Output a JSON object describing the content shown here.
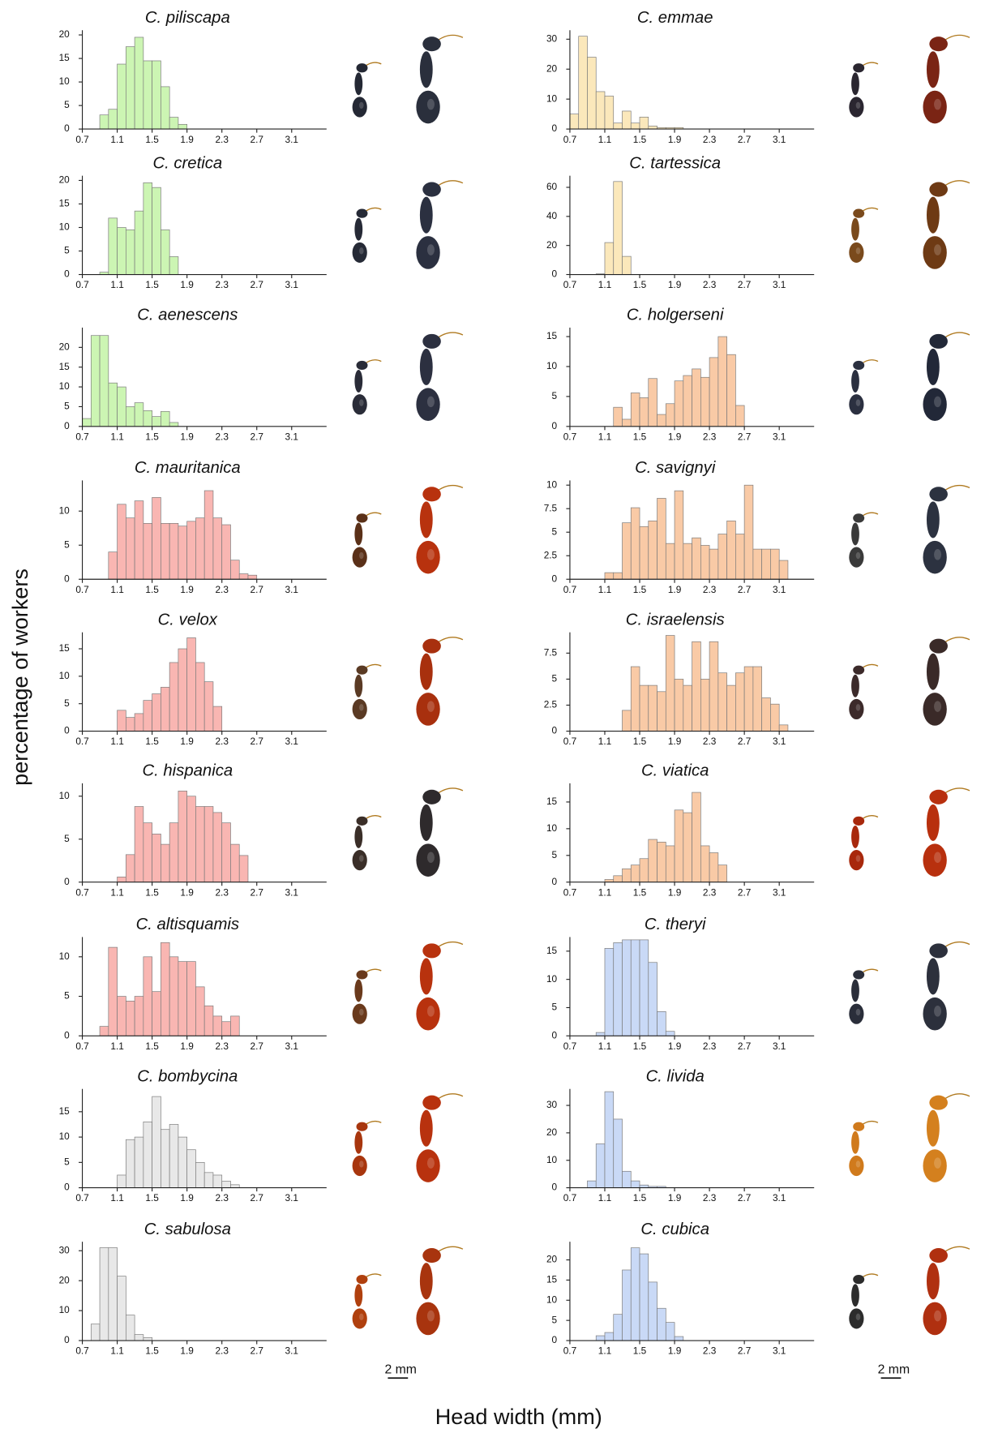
{
  "chart_data": [
    {
      "type": "histogram",
      "title": "C. piliscapa",
      "color": "#ccf5b3",
      "xlim": [
        0.7,
        3.5
      ],
      "xticks": [
        0.7,
        1.1,
        1.5,
        1.9,
        2.3,
        2.7,
        3.1
      ],
      "ylim": [
        0,
        21
      ],
      "yticks": [
        0,
        5,
        10,
        15,
        20
      ],
      "bins": [
        0.9,
        1.0,
        1.1,
        1.2,
        1.3,
        1.4,
        1.5,
        1.6,
        1.7,
        1.8,
        1.9
      ],
      "counts": [
        3,
        4.2,
        13.8,
        17.5,
        19.5,
        14.5,
        14.5,
        9,
        2.5,
        1
      ]
    },
    {
      "type": "histogram",
      "title": "C. emmae",
      "color": "#fbe8bb",
      "xlim": [
        0.7,
        3.5
      ],
      "xticks": [
        0.7,
        1.1,
        1.5,
        1.9,
        2.3,
        2.7,
        3.1
      ],
      "ylim": [
        0,
        33
      ],
      "yticks": [
        0,
        10,
        20,
        30
      ],
      "bins": [
        0.7,
        0.8,
        0.9,
        1.0,
        1.1,
        1.2,
        1.3,
        1.4,
        1.5,
        1.6,
        1.7,
        1.8,
        1.9,
        2.0
      ],
      "counts": [
        5,
        31,
        24,
        12.5,
        11,
        2,
        6,
        2,
        4,
        1,
        0.5,
        0.5,
        0.5
      ]
    },
    {
      "type": "histogram",
      "title": "C. cretica",
      "color": "#ccf5b3",
      "xlim": [
        0.7,
        3.5
      ],
      "xticks": [
        0.7,
        1.1,
        1.5,
        1.9,
        2.3,
        2.7,
        3.1
      ],
      "ylim": [
        0,
        21
      ],
      "yticks": [
        0,
        5,
        10,
        15,
        20
      ],
      "bins": [
        0.9,
        1.0,
        1.1,
        1.2,
        1.3,
        1.4,
        1.5,
        1.6,
        1.7,
        1.8
      ],
      "counts": [
        0.5,
        12,
        10,
        9.5,
        13.5,
        19.5,
        18.5,
        9.5,
        3.8
      ]
    },
    {
      "type": "histogram",
      "title": "C. tartessica",
      "color": "#fbe8bb",
      "xlim": [
        0.7,
        3.5
      ],
      "xticks": [
        0.7,
        1.1,
        1.5,
        1.9,
        2.3,
        2.7,
        3.1
      ],
      "ylim": [
        0,
        68
      ],
      "yticks": [
        0,
        20,
        40,
        60
      ],
      "bins": [
        1.0,
        1.1,
        1.2,
        1.3,
        1.4
      ],
      "counts": [
        0.5,
        22,
        64,
        12.5
      ]
    },
    {
      "type": "histogram",
      "title": "C. aenescens",
      "color": "#ccf5b3",
      "xlim": [
        0.7,
        3.5
      ],
      "xticks": [
        0.7,
        1.1,
        1.5,
        1.9,
        2.3,
        2.7,
        3.1
      ],
      "ylim": [
        0,
        25
      ],
      "yticks": [
        0,
        5,
        10,
        15,
        20
      ],
      "bins": [
        0.7,
        0.8,
        0.9,
        1.0,
        1.1,
        1.2,
        1.3,
        1.4,
        1.5,
        1.6,
        1.7,
        1.8
      ],
      "counts": [
        2,
        23,
        23,
        11,
        10,
        5,
        6,
        4,
        2.5,
        3.8,
        1
      ]
    },
    {
      "type": "histogram",
      "title": "C. holgerseni",
      "color": "#f9caa6",
      "xlim": [
        0.7,
        3.5
      ],
      "xticks": [
        0.7,
        1.1,
        1.5,
        1.9,
        2.3,
        2.7,
        3.1
      ],
      "ylim": [
        0,
        16.5
      ],
      "yticks": [
        0,
        5,
        10,
        15
      ],
      "bins": [
        1.2,
        1.3,
        1.4,
        1.5,
        1.6,
        1.7,
        1.8,
        1.9,
        2.0,
        2.1,
        2.2,
        2.3,
        2.4,
        2.5,
        2.6,
        2.7
      ],
      "counts": [
        3.2,
        1.2,
        5.6,
        4.8,
        8,
        2,
        3.8,
        7.6,
        8.5,
        9.6,
        8.2,
        11.5,
        15,
        12,
        3.5
      ]
    },
    {
      "type": "histogram",
      "title": "C. mauritanica",
      "color": "#f9b6b2",
      "xlim": [
        0.7,
        3.5
      ],
      "xticks": [
        0.7,
        1.1,
        1.5,
        1.9,
        2.3,
        2.7,
        3.1
      ],
      "ylim": [
        0,
        14.5
      ],
      "yticks": [
        0,
        5,
        10
      ],
      "bins": [
        1.0,
        1.1,
        1.2,
        1.3,
        1.4,
        1.5,
        1.6,
        1.7,
        1.8,
        1.9,
        2.0,
        2.1,
        2.2,
        2.3,
        2.4,
        2.5,
        2.6,
        2.7
      ],
      "counts": [
        4,
        11,
        9,
        11.5,
        8.2,
        12,
        8.2,
        8.2,
        7.8,
        8.5,
        9,
        13,
        9,
        8,
        2.8,
        0.8,
        0.6
      ]
    },
    {
      "type": "histogram",
      "title": "C. savignyi",
      "color": "#f9caa6",
      "xlim": [
        0.7,
        3.5
      ],
      "xticks": [
        0.7,
        1.1,
        1.5,
        1.9,
        2.3,
        2.7,
        3.1
      ],
      "ylim": [
        0,
        10.5
      ],
      "yticks": [
        0,
        2.5,
        5,
        7.5,
        10
      ],
      "bins": [
        1.1,
        1.2,
        1.3,
        1.4,
        1.5,
        1.6,
        1.7,
        1.8,
        1.9,
        2.0,
        2.1,
        2.2,
        2.3,
        2.4,
        2.5,
        2.6,
        2.7,
        2.8,
        2.9,
        3.0,
        3.1,
        3.2
      ],
      "counts": [
        0.7,
        0.7,
        6,
        7.6,
        5.6,
        6.2,
        8.6,
        3.8,
        9.4,
        3.8,
        4.4,
        3.6,
        3.2,
        4.8,
        6.2,
        4.8,
        10,
        3.2,
        3.2,
        3.2,
        2
      ]
    },
    {
      "type": "histogram",
      "title": "C. velox",
      "color": "#f9b6b2",
      "xlim": [
        0.7,
        3.5
      ],
      "xticks": [
        0.7,
        1.1,
        1.5,
        1.9,
        2.3,
        2.7,
        3.1
      ],
      "ylim": [
        0,
        18
      ],
      "yticks": [
        0,
        5,
        10,
        15
      ],
      "bins": [
        1.1,
        1.2,
        1.3,
        1.4,
        1.5,
        1.6,
        1.7,
        1.8,
        1.9,
        2.0,
        2.1,
        2.2,
        2.3
      ],
      "counts": [
        3.8,
        2.5,
        3.2,
        5.6,
        6.8,
        8,
        12.5,
        15,
        17,
        12.5,
        9,
        4.5
      ]
    },
    {
      "type": "histogram",
      "title": "C. israelensis",
      "color": "#f9caa6",
      "xlim": [
        0.7,
        3.5
      ],
      "xticks": [
        0.7,
        1.1,
        1.5,
        1.9,
        2.3,
        2.7,
        3.1
      ],
      "ylim": [
        0,
        9.5
      ],
      "yticks": [
        0,
        2.5,
        5,
        7.5
      ],
      "bins": [
        1.3,
        1.4,
        1.5,
        1.6,
        1.7,
        1.8,
        1.9,
        2.0,
        2.1,
        2.2,
        2.3,
        2.4,
        2.5,
        2.6,
        2.7,
        2.8,
        2.9,
        3.0,
        3.1,
        3.2
      ],
      "counts": [
        2,
        6.2,
        4.4,
        4.4,
        3.8,
        9.2,
        5,
        4.4,
        8.6,
        5,
        8.6,
        5.6,
        4.4,
        5.6,
        6.2,
        6.2,
        3.2,
        2.6,
        0.6
      ]
    },
    {
      "type": "histogram",
      "title": "C. hispanica",
      "color": "#f9b6b2",
      "xlim": [
        0.7,
        3.5
      ],
      "xticks": [
        0.7,
        1.1,
        1.5,
        1.9,
        2.3,
        2.7,
        3.1
      ],
      "ylim": [
        0,
        11.5
      ],
      "yticks": [
        0,
        5,
        10
      ],
      "bins": [
        1.1,
        1.2,
        1.3,
        1.4,
        1.5,
        1.6,
        1.7,
        1.8,
        1.9,
        2.0,
        2.1,
        2.2,
        2.3,
        2.4,
        2.5,
        2.6
      ],
      "counts": [
        0.6,
        3.2,
        8.8,
        6.9,
        5.6,
        4.4,
        6.9,
        10.6,
        10,
        8.8,
        8.8,
        8.1,
        6.9,
        4.4,
        3.1
      ]
    },
    {
      "type": "histogram",
      "title": "C. viatica",
      "color": "#f9caa6",
      "xlim": [
        0.7,
        3.5
      ],
      "xticks": [
        0.7,
        1.1,
        1.5,
        1.9,
        2.3,
        2.7,
        3.1
      ],
      "ylim": [
        0,
        18.5
      ],
      "yticks": [
        0,
        5,
        10,
        15
      ],
      "bins": [
        1.1,
        1.2,
        1.3,
        1.4,
        1.5,
        1.6,
        1.7,
        1.8,
        1.9,
        2.0,
        2.1,
        2.2,
        2.3,
        2.4,
        2.5
      ],
      "counts": [
        0.5,
        1.2,
        2.5,
        3.2,
        4.4,
        8,
        7.5,
        6.8,
        13.5,
        13,
        16.8,
        6.8,
        5.5,
        3.2
      ]
    },
    {
      "type": "histogram",
      "title": "C. altisquamis",
      "color": "#f9b6b2",
      "xlim": [
        0.7,
        3.5
      ],
      "xticks": [
        0.7,
        1.1,
        1.5,
        1.9,
        2.3,
        2.7,
        3.1
      ],
      "ylim": [
        0,
        12.5
      ],
      "yticks": [
        0,
        5,
        10
      ],
      "bins": [
        0.9,
        1.0,
        1.1,
        1.2,
        1.3,
        1.4,
        1.5,
        1.6,
        1.7,
        1.8,
        1.9,
        2.0,
        2.1,
        2.2,
        2.3,
        2.4,
        2.5
      ],
      "counts": [
        1.2,
        11.2,
        5,
        4.4,
        5,
        10,
        5.6,
        11.8,
        10,
        9.4,
        9.4,
        6.2,
        3.8,
        2.5,
        1.8,
        2.5
      ]
    },
    {
      "type": "histogram",
      "title": "C. theryi",
      "color": "#c9d9f6",
      "xlim": [
        0.7,
        3.5
      ],
      "xticks": [
        0.7,
        1.1,
        1.5,
        1.9,
        2.3,
        2.7,
        3.1
      ],
      "ylim": [
        0,
        17.5
      ],
      "yticks": [
        0,
        5,
        10,
        15
      ],
      "bins": [
        1.0,
        1.1,
        1.2,
        1.3,
        1.4,
        1.5,
        1.6,
        1.7,
        1.8,
        1.9
      ],
      "counts": [
        0.6,
        15.5,
        16.5,
        17,
        17,
        17,
        13,
        4.3,
        0.8
      ]
    },
    {
      "type": "histogram",
      "title": "C. bombycina",
      "color": "#e8e8e8",
      "xlim": [
        0.7,
        3.5
      ],
      "xticks": [
        0.7,
        1.1,
        1.5,
        1.9,
        2.3,
        2.7,
        3.1
      ],
      "ylim": [
        0,
        19.5
      ],
      "yticks": [
        0,
        5,
        10,
        15
      ],
      "bins": [
        1.1,
        1.2,
        1.3,
        1.4,
        1.5,
        1.6,
        1.7,
        1.8,
        1.9,
        2.0,
        2.1,
        2.2,
        2.3,
        2.4,
        2.5
      ],
      "counts": [
        2.5,
        9.5,
        10,
        13,
        18,
        11.5,
        12.5,
        10,
        7.5,
        5,
        3,
        2.5,
        1.3,
        0.6
      ]
    },
    {
      "type": "histogram",
      "title": "C. livida",
      "color": "#c9d9f6",
      "xlim": [
        0.7,
        3.5
      ],
      "xticks": [
        0.7,
        1.1,
        1.5,
        1.9,
        2.3,
        2.7,
        3.1
      ],
      "ylim": [
        0,
        36
      ],
      "yticks": [
        0,
        10,
        20,
        30
      ],
      "bins": [
        0.9,
        1.0,
        1.1,
        1.2,
        1.3,
        1.4,
        1.5,
        1.6,
        1.7,
        1.8
      ],
      "counts": [
        2.5,
        16,
        35,
        25,
        6,
        2.5,
        1,
        0.5,
        0.5
      ]
    },
    {
      "type": "histogram",
      "title": "C. sabulosa",
      "color": "#e8e8e8",
      "xlim": [
        0.7,
        3.5
      ],
      "xticks": [
        0.7,
        1.1,
        1.5,
        1.9,
        2.3,
        2.7,
        3.1
      ],
      "ylim": [
        0,
        33
      ],
      "yticks": [
        0,
        10,
        20,
        30
      ],
      "bins": [
        0.8,
        0.9,
        1.0,
        1.1,
        1.2,
        1.3,
        1.4,
        1.5
      ],
      "counts": [
        5.5,
        31,
        31,
        21.5,
        8.5,
        2,
        1
      ]
    },
    {
      "type": "histogram",
      "title": "C. cubica",
      "color": "#c9d9f6",
      "xlim": [
        0.7,
        3.5
      ],
      "xticks": [
        0.7,
        1.1,
        1.5,
        1.9,
        2.3,
        2.7,
        3.1
      ],
      "ylim": [
        0,
        24.5
      ],
      "yticks": [
        0,
        5,
        10,
        15,
        20
      ],
      "bins": [
        1.0,
        1.1,
        1.2,
        1.3,
        1.4,
        1.5,
        1.6,
        1.7,
        1.8,
        1.9,
        2.0
      ],
      "counts": [
        1.2,
        2,
        6.5,
        17.5,
        23,
        21.5,
        14.5,
        8,
        4.5,
        1
      ]
    }
  ],
  "y_axis_label": "percentage of workers",
  "x_axis_label": "Head width (mm)",
  "scale_bar_label": "2 mm"
}
